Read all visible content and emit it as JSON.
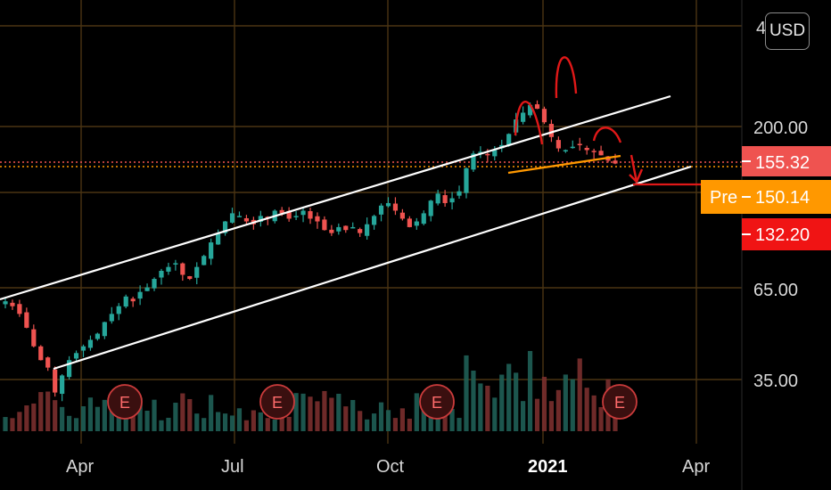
{
  "chart_data": {
    "type": "candlestick",
    "price_axis": {
      "ticks": [
        35,
        65,
        200
      ],
      "tick_labels": [
        "35.00",
        "65.00",
        "200.00"
      ],
      "partial_top_label": "4",
      "scale": "log"
    },
    "time_axis": {
      "tick_labels": [
        "Apr",
        "Jul",
        "Oct",
        "2021",
        "Apr"
      ],
      "year_label": "2021"
    },
    "price_tags": [
      {
        "label": "",
        "value": "155.32",
        "color": "#ef5350"
      },
      {
        "label": "Pre",
        "value": "150.14",
        "color": "#ff9800"
      },
      {
        "label": "",
        "value": "132.20",
        "color": "#f01414"
      }
    ],
    "earnings_markers": [
      "E",
      "E",
      "E",
      "E"
    ],
    "series": [
      {
        "kind": "close",
        "values": [
          60,
          58,
          55,
          50,
          44,
          40,
          38,
          32,
          36,
          40,
          42,
          44,
          46,
          48,
          52,
          55,
          58,
          62,
          60,
          64,
          66,
          70,
          74,
          76,
          78,
          72,
          70,
          76,
          82,
          90,
          96,
          104,
          110,
          108,
          104,
          102,
          108,
          106,
          112,
          110,
          106,
          108,
          112,
          106,
          104,
          98,
          96,
          100,
          98,
          100,
          96,
          102,
          108,
          116,
          118,
          112,
          106,
          100,
          104,
          110,
          120,
          126,
          118,
          122,
          128,
          150,
          166,
          168,
          164,
          170,
          176,
          190,
          210,
          220,
          232,
          226,
          206,
          186,
          172,
          170,
          174,
          176,
          170,
          168,
          164,
          158,
          155
        ]
      }
    ],
    "volume": "relative bars along bottom (red/green)",
    "annotations": {
      "channel_lines": 2,
      "neckline": "orange",
      "arcs": "head and shoulders (red)",
      "down_arrow": "red"
    }
  },
  "ui": {
    "currency_button": "USD"
  },
  "colors": {
    "up": "#26a69a",
    "down": "#ef5350",
    "grid": "#4a3413",
    "annotation_red": "#e01818",
    "annotation_orange": "#ff9800",
    "channel": "#ffffff"
  }
}
